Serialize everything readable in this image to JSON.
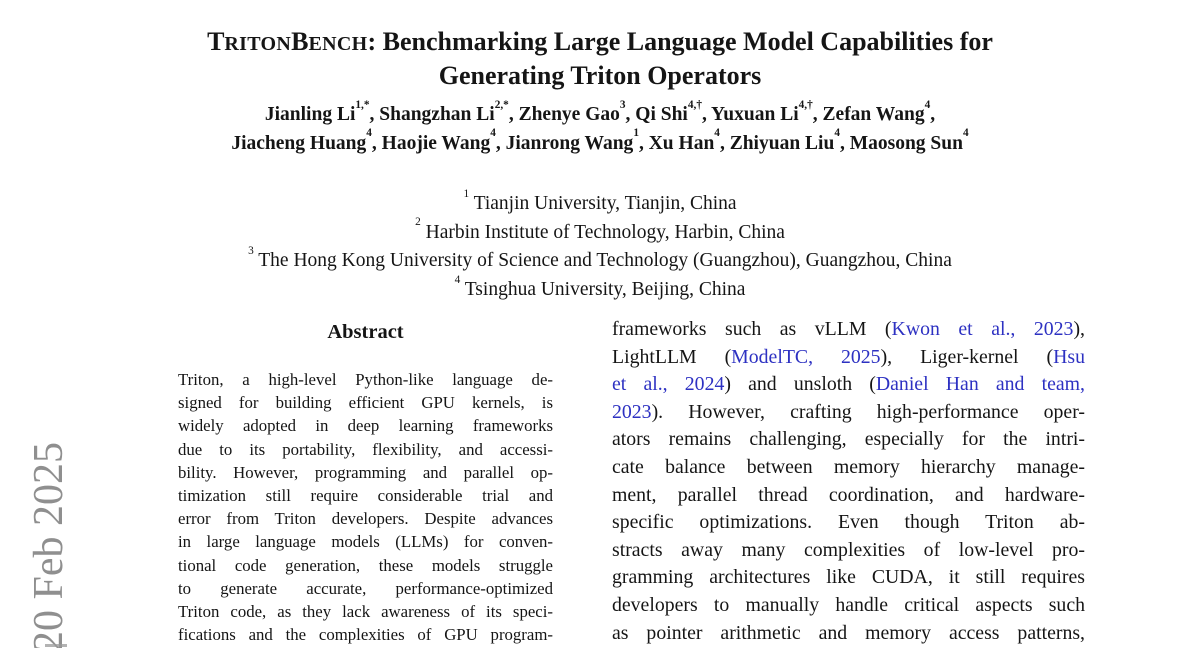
{
  "arxiv_stamp": {
    "date": "20 Feb 2025"
  },
  "title": {
    "wordmark": [
      {
        "big": "T",
        "small": "RITON"
      },
      {
        "big": "B",
        "small": "ENCH"
      }
    ],
    "rest_line1": ": Benchmarking Large Language Model Capabilities for",
    "line2": "Generating Triton Operators"
  },
  "authors": {
    "line1": [
      {
        "name": "Jianling Li",
        "sup": "1,*",
        "tail": ", "
      },
      {
        "name": "Shangzhan Li",
        "sup": "2,*",
        "tail": ", "
      },
      {
        "name": "Zhenye Gao",
        "sup": "3",
        "tail": ", "
      },
      {
        "name": "Qi Shi",
        "sup": "4,†",
        "tail": ", "
      },
      {
        "name": "Yuxuan Li",
        "sup": "4,†",
        "tail": ", "
      },
      {
        "name": "Zefan Wang",
        "sup": "4",
        "tail": ","
      }
    ],
    "line2": [
      {
        "name": "Jiacheng Huang",
        "sup": "4",
        "tail": ", "
      },
      {
        "name": "Haojie Wang",
        "sup": "4",
        "tail": ", "
      },
      {
        "name": "Jianrong Wang",
        "sup": "1",
        "tail": ", "
      },
      {
        "name": "Xu Han",
        "sup": "4",
        "tail": ", "
      },
      {
        "name": "Zhiyuan Liu",
        "sup": "4",
        "tail": ", "
      },
      {
        "name": "Maosong Sun",
        "sup": "4",
        "tail": ""
      }
    ]
  },
  "affiliations": [
    {
      "sup": "1",
      "text": " Tianjin University, Tianjin, China"
    },
    {
      "sup": "2",
      "text": " Harbin Institute of Technology, Harbin, China"
    },
    {
      "sup": "3",
      "text": " The Hong Kong University of Science and Technology (Guangzhou), Guangzhou, China"
    },
    {
      "sup": "4",
      "text": " Tsinghua University, Beijing, China"
    }
  ],
  "abstract": {
    "heading": "Abstract",
    "lines": [
      "Triton, a high-level Python-like language de-",
      "signed for building efficient GPU kernels, is",
      "widely adopted in deep learning frameworks",
      "due to its portability, flexibility, and accessi-",
      "bility. However, programming and parallel op-",
      "timization still require considerable trial and",
      "error from Triton developers. Despite advances",
      "in large language models (LLMs) for conven-",
      "tional code generation, these models struggle",
      "to generate accurate, performance-optimized",
      "Triton code, as they lack awareness of its speci-",
      "fications and the complexities of GPU program-"
    ]
  },
  "intro": {
    "lines": [
      [
        {
          "t": "frameworks such as vLLM ("
        },
        {
          "t": "Kwon et al., 2023",
          "link": true
        },
        {
          "t": "),"
        }
      ],
      [
        {
          "t": "LightLLM ("
        },
        {
          "t": "ModelTC, 2025",
          "link": true
        },
        {
          "t": "), Liger-kernel ("
        },
        {
          "t": "Hsu",
          "link": true
        }
      ],
      [
        {
          "t": "et al., 2024",
          "link": true
        },
        {
          "t": ") and unsloth ("
        },
        {
          "t": "Daniel Han and team,",
          "link": true
        }
      ],
      [
        {
          "t": "2023",
          "link": true
        },
        {
          "t": "). However, crafting high-performance oper-"
        }
      ],
      [
        {
          "t": "ators remains challenging, especially for the intri-"
        }
      ],
      [
        {
          "t": "cate balance between memory hierarchy manage-"
        }
      ],
      [
        {
          "t": "ment, parallel thread coordination, and hardware-"
        }
      ],
      [
        {
          "t": "specific optimizations. Even though Triton ab-"
        }
      ],
      [
        {
          "t": "stracts away many complexities of low-level pro-"
        }
      ],
      [
        {
          "t": "gramming architectures like CUDA, it still requires"
        }
      ],
      [
        {
          "t": "developers to manually handle critical aspects such"
        }
      ],
      [
        {
          "t": "as pointer arithmetic and memory access patterns,"
        }
      ]
    ]
  },
  "colors": {
    "text": "#151515",
    "citation_link": "#2d31c2",
    "stamp_gray": "#8f8f8f"
  }
}
